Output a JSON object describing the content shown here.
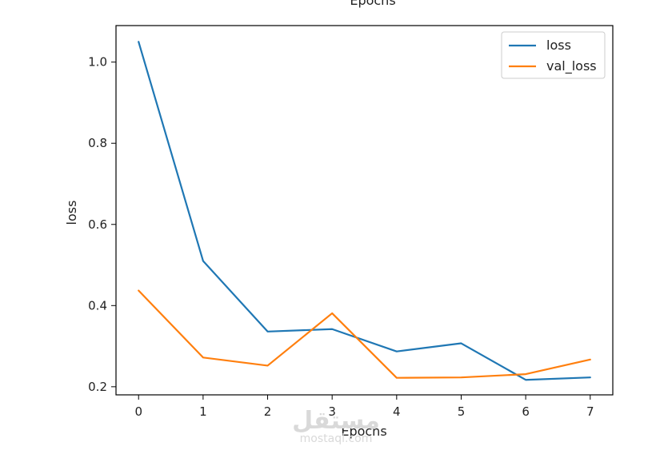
{
  "chart_data": {
    "type": "line",
    "title": "Epochs",
    "xlabel": "Epochs",
    "ylabel": "loss",
    "x": [
      0,
      1,
      2,
      3,
      4,
      5,
      6,
      7
    ],
    "xlim": [
      -0.35,
      7.35
    ],
    "ylim": [
      0.18,
      1.09
    ],
    "xticks": [
      "0",
      "1",
      "2",
      "3",
      "4",
      "5",
      "6",
      "7"
    ],
    "yticks": [
      "0.2",
      "0.4",
      "0.6",
      "0.8",
      "1.0"
    ],
    "ytick_values": [
      0.2,
      0.4,
      0.6,
      0.8,
      1.0
    ],
    "grid": false,
    "legend_position": "top-right",
    "series": [
      {
        "name": "loss",
        "color": "#1f77b4",
        "values": [
          1.05,
          0.51,
          0.336,
          0.342,
          0.287,
          0.307,
          0.217,
          0.223
        ]
      },
      {
        "name": "val_loss",
        "color": "#ff7f0e",
        "values": [
          0.437,
          0.272,
          0.252,
          0.381,
          0.222,
          0.223,
          0.231,
          0.267
        ]
      }
    ]
  },
  "watermark": {
    "arabic": "مستقل",
    "latin": "mostaql.com"
  }
}
